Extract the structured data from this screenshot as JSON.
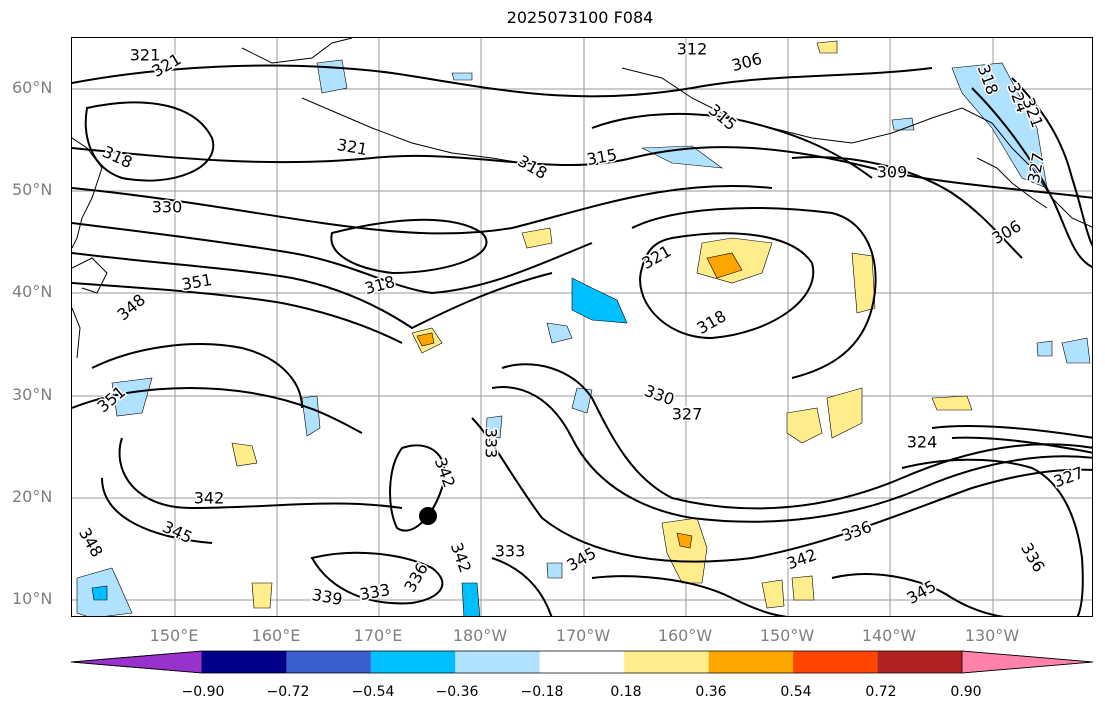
{
  "title": "2025073100 F084",
  "lat_labels": [
    "60°N",
    "50°N",
    "40°N",
    "30°N",
    "20°N",
    "10°N"
  ],
  "lon_labels": [
    "150°E",
    "160°E",
    "170°E",
    "180°W",
    "170°W",
    "160°W",
    "150°W",
    "140°W",
    "130°W"
  ],
  "colorbar": {
    "colors": [
      "#9932cc",
      "#00008b",
      "#3a5fcd",
      "#00bfff",
      "#b0e2ff",
      "#ffffff",
      "#ffec8b",
      "#ffa500",
      "#ff4500",
      "#b22222",
      "#ff82ab"
    ],
    "tick_labels": [
      "−0.90",
      "−0.72",
      "−0.54",
      "−0.36",
      "−0.18",
      "0.18",
      "0.36",
      "0.54",
      "0.72",
      "0.90"
    ]
  },
  "contour_labels": [
    "321",
    "321",
    "318",
    "321",
    "318",
    "315",
    "312",
    "306",
    "315",
    "318",
    "324",
    "321",
    "309",
    "327",
    "306",
    "330",
    "318",
    "321",
    "351",
    "348",
    "318",
    "330",
    "327",
    "324",
    "351",
    "333",
    "342",
    "342",
    "345",
    "348",
    "336",
    "339",
    "333",
    "342",
    "333",
    "345",
    "342",
    "336",
    "345",
    "336",
    "327"
  ],
  "marker": "typhoon-position-dot"
}
